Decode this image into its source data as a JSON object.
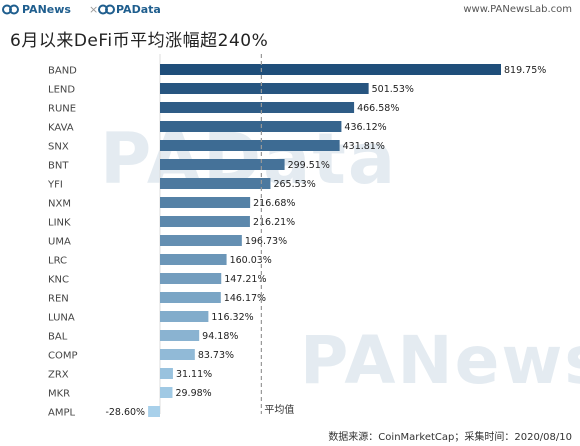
{
  "header": {
    "brand_left": "PANews",
    "separator": "×",
    "brand_right": "PAData",
    "site": "www.PANewsLab.com"
  },
  "watermark": {
    "top": "PAData",
    "bottom": "PANews"
  },
  "chart_data": {
    "type": "bar",
    "orientation": "horizontal",
    "title": "6月以来DeFi币平均涨幅超240%",
    "categories": [
      "BAND",
      "LEND",
      "RUNE",
      "KAVA",
      "SNX",
      "BNT",
      "YFI",
      "NXM",
      "LINK",
      "UMA",
      "LRC",
      "KNC",
      "REN",
      "LUNA",
      "BAL",
      "COMP",
      "ZRX",
      "MKR",
      "AMPL"
    ],
    "values": [
      819.75,
      501.53,
      466.58,
      436.12,
      431.81,
      299.51,
      265.53,
      216.68,
      216.21,
      196.73,
      160.03,
      147.21,
      146.17,
      116.32,
      94.18,
      83.73,
      31.11,
      29.98,
      -28.6
    ],
    "value_labels": [
      "819.75%",
      "501.53%",
      "466.58%",
      "436.12%",
      "431.81%",
      "299.51%",
      "265.53%",
      "216.68%",
      "216.21%",
      "196.73%",
      "160.03%",
      "147.21%",
      "146.17%",
      "116.32%",
      "94.18%",
      "83.73%",
      "31.11%",
      "29.98%",
      "-28.60%"
    ],
    "average_label": "平均值",
    "bar_color_dark": "#1f4e7a",
    "bar_color_light": "#a8d0ea",
    "average_line_color": "#999999"
  },
  "footer": {
    "source": "数据来源：CoinMarketCap；采集时间：2020/08/10"
  }
}
